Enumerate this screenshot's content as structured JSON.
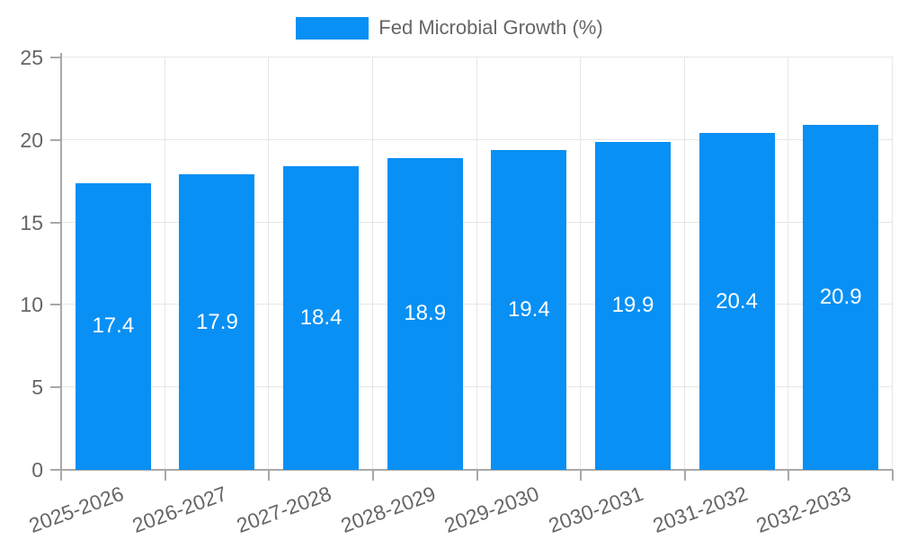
{
  "legend": {
    "label": "Fed Microbial Growth (%)"
  },
  "chart_data": {
    "type": "bar",
    "title": "",
    "xlabel": "",
    "ylabel": "",
    "categories": [
      "2025-2026",
      "2026-2027",
      "2027-2028",
      "2028-2029",
      "2029-2030",
      "2030-2031",
      "2031-2032",
      "2032-2033"
    ],
    "series": [
      {
        "name": "Fed Microbial Growth (%)",
        "values": [
          17.4,
          17.9,
          18.4,
          18.9,
          19.4,
          19.9,
          20.4,
          20.9
        ]
      }
    ],
    "value_labels": [
      "17.4",
      "17.9",
      "18.4",
      "18.9",
      "19.4",
      "19.9",
      "20.4",
      "20.9"
    ],
    "ylim": [
      0,
      25
    ],
    "yticks": [
      0,
      5,
      10,
      15,
      20,
      25
    ],
    "grid": true,
    "legend_position": "top",
    "colors": {
      "bar": "#0890F5",
      "grid": "#e6e6e6",
      "axis": "#a8a8a8",
      "tick_text": "#666666",
      "value_text": "#ffffff",
      "background": "#ffffff"
    }
  }
}
